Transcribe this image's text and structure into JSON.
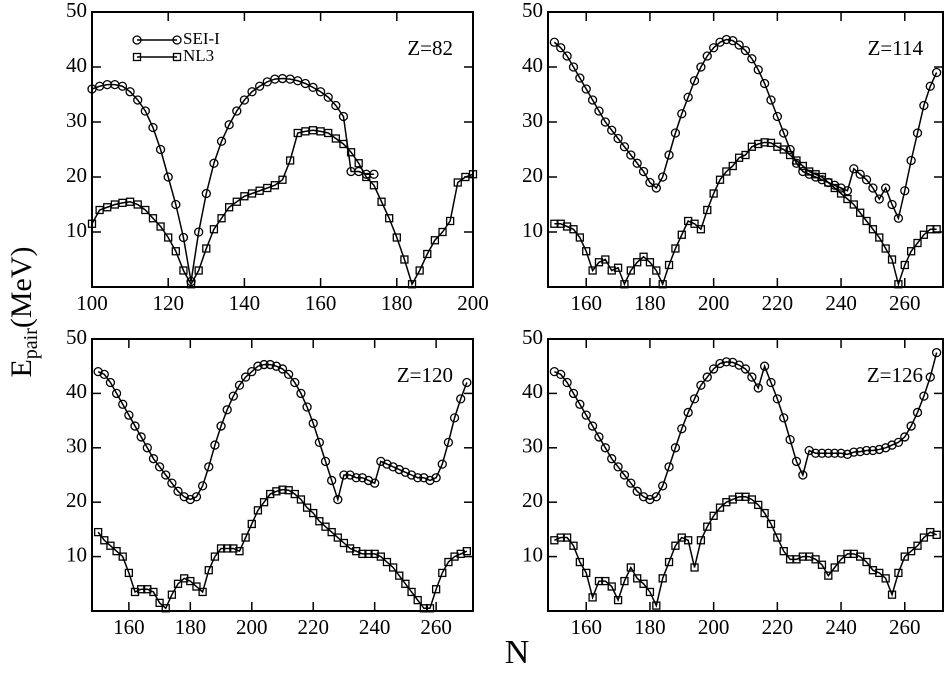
{
  "chart_data": [
    {
      "type": "line",
      "annotation": "Z=82",
      "xlabel": "N",
      "ylabel": "E",
      "ylabel_sub": "pair",
      "ylabel_unit": "(MeV)",
      "legend": "upper left",
      "grid": false,
      "xlim": [
        100,
        200
      ],
      "ylim": [
        0,
        50
      ],
      "xticks": [
        100,
        120,
        140,
        160,
        180,
        200
      ],
      "yticks": [
        10,
        20,
        30,
        40,
        50
      ],
      "x": [
        100,
        102,
        104,
        106,
        108,
        110,
        112,
        114,
        116,
        118,
        120,
        122,
        124,
        126,
        128,
        130,
        132,
        134,
        136,
        138,
        140,
        142,
        144,
        146,
        148,
        150,
        152,
        154,
        156,
        158,
        160,
        162,
        164,
        166,
        168,
        170,
        172,
        174,
        176,
        178,
        180,
        182,
        184,
        186,
        188,
        190,
        192,
        194,
        196,
        198,
        200
      ],
      "series": [
        {
          "name": "SEI-I",
          "color": "#000000",
          "marker": "circle",
          "values": [
            36,
            36.5,
            36.8,
            36.8,
            36.5,
            35.5,
            34,
            32,
            29,
            25,
            20,
            15,
            9,
            1,
            10,
            17,
            22.5,
            26.5,
            29.5,
            32,
            34,
            35.5,
            36.5,
            37.3,
            37.8,
            37.9,
            37.8,
            37.5,
            37,
            36.3,
            35.5,
            34.5,
            33,
            31,
            21,
            21,
            20.5,
            20.5,
            null,
            null,
            null,
            null,
            null,
            null,
            null,
            null,
            null,
            null,
            null,
            null,
            null
          ]
        },
        {
          "name": "NL3",
          "color": "#000000",
          "marker": "square",
          "values": [
            11.5,
            14,
            14.5,
            15,
            15.3,
            15.5,
            15,
            14,
            12.5,
            11,
            9,
            6.5,
            3,
            0.5,
            3,
            7,
            10.5,
            12.5,
            14.5,
            15.5,
            16.5,
            17,
            17.5,
            18,
            18.5,
            19.5,
            23,
            28,
            28.3,
            28.5,
            28.3,
            28,
            27,
            26,
            24.5,
            22.5,
            20,
            18.5,
            15.5,
            12.5,
            9,
            5,
            0.5,
            3,
            6,
            8.5,
            10,
            12,
            19,
            20,
            20.5
          ]
        }
      ]
    },
    {
      "type": "line",
      "annotation": "Z=114",
      "grid": false,
      "xlim": [
        148,
        272
      ],
      "ylim": [
        0,
        50
      ],
      "xticks": [
        160,
        180,
        200,
        220,
        240,
        260
      ],
      "yticks": [
        10,
        20,
        30,
        40,
        50
      ],
      "x": [
        150,
        152,
        154,
        156,
        158,
        160,
        162,
        164,
        166,
        168,
        170,
        172,
        174,
        176,
        178,
        180,
        182,
        184,
        186,
        188,
        190,
        192,
        194,
        196,
        198,
        200,
        202,
        204,
        206,
        208,
        210,
        212,
        214,
        216,
        218,
        220,
        222,
        224,
        226,
        228,
        230,
        232,
        234,
        236,
        238,
        240,
        242,
        244,
        246,
        248,
        250,
        252,
        254,
        256,
        258,
        260,
        262,
        264,
        266,
        268,
        270
      ],
      "series": [
        {
          "color": "#000000",
          "marker": "circle",
          "values": [
            44.5,
            43.5,
            42,
            40,
            38,
            36,
            34,
            32,
            30,
            28.5,
            27,
            25.5,
            24,
            22.5,
            21,
            19,
            18,
            20,
            24,
            28,
            31.5,
            34.5,
            37.5,
            40,
            42,
            43.5,
            44.5,
            45,
            44.8,
            44,
            43,
            41.5,
            39.5,
            37,
            34,
            31,
            28,
            25,
            22.5,
            21,
            20.5,
            20,
            19.5,
            19,
            18.5,
            18,
            17.5,
            21.5,
            20.5,
            19.5,
            18,
            16,
            18,
            15,
            12.5,
            17.5,
            23,
            28,
            33,
            36.5,
            39
          ]
        },
        {
          "color": "#000000",
          "marker": "square",
          "values": [
            11.5,
            11.5,
            11,
            10.5,
            9,
            6.5,
            3,
            4.5,
            5,
            3,
            3.5,
            0.5,
            3,
            4.5,
            5.5,
            4.5,
            3,
            0.5,
            4,
            7,
            9.5,
            12,
            11.5,
            10.5,
            14,
            17,
            19.5,
            21,
            22,
            23.5,
            24,
            25.5,
            26,
            26.3,
            26.2,
            25.5,
            25,
            24,
            23,
            22,
            21,
            20.5,
            20,
            19,
            18,
            17,
            16,
            15,
            13.5,
            12,
            10.5,
            9,
            7,
            5,
            0.5,
            4,
            6.5,
            8,
            9.5,
            10.5,
            10.5
          ]
        }
      ]
    },
    {
      "type": "line",
      "annotation": "Z=120",
      "grid": false,
      "xlim": [
        148,
        272
      ],
      "ylim": [
        0,
        50
      ],
      "xticks": [
        160,
        180,
        200,
        220,
        240,
        260
      ],
      "yticks": [
        10,
        20,
        30,
        40,
        50
      ],
      "x": [
        150,
        152,
        154,
        156,
        158,
        160,
        162,
        164,
        166,
        168,
        170,
        172,
        174,
        176,
        178,
        180,
        182,
        184,
        186,
        188,
        190,
        192,
        194,
        196,
        198,
        200,
        202,
        204,
        206,
        208,
        210,
        212,
        214,
        216,
        218,
        220,
        222,
        224,
        226,
        228,
        230,
        232,
        234,
        236,
        238,
        240,
        242,
        244,
        246,
        248,
        250,
        252,
        254,
        256,
        258,
        260,
        262,
        264,
        266,
        268,
        270
      ],
      "series": [
        {
          "color": "#000000",
          "marker": "circle",
          "values": [
            44,
            43.5,
            42,
            40,
            38,
            36,
            34,
            32,
            30,
            28,
            26.5,
            25,
            23.5,
            22,
            21,
            20.5,
            21,
            23,
            26.5,
            30.5,
            34,
            37,
            39.5,
            41.5,
            43,
            44,
            45,
            45.3,
            45.3,
            45,
            44.5,
            43.5,
            42,
            40,
            37.5,
            34.5,
            31,
            27.5,
            24,
            20.5,
            25,
            25,
            24.5,
            24.5,
            24,
            23.5,
            27.5,
            27,
            26.5,
            26,
            25.5,
            25,
            24.5,
            24.5,
            24,
            24.5,
            27,
            31,
            35.5,
            39,
            42
          ]
        },
        {
          "color": "#000000",
          "marker": "square",
          "values": [
            14.5,
            13,
            12,
            11,
            10,
            7,
            3.5,
            4,
            4,
            3.5,
            1.5,
            0.5,
            3,
            5,
            6,
            5.5,
            4.5,
            3.5,
            7.5,
            10,
            11.5,
            11.5,
            11.5,
            11,
            13.5,
            16,
            18.5,
            20,
            21.5,
            22,
            22.3,
            22.2,
            21.5,
            20.5,
            19,
            18,
            16.5,
            15.5,
            14.5,
            13.5,
            12.5,
            11.5,
            11,
            10.5,
            10.5,
            10.5,
            10,
            9,
            8,
            6.5,
            5,
            3.5,
            2,
            0.5,
            0.5,
            4,
            7,
            9,
            10,
            10.5,
            11
          ]
        }
      ]
    },
    {
      "type": "line",
      "annotation": "Z=126",
      "grid": false,
      "xlim": [
        148,
        272
      ],
      "ylim": [
        0,
        50
      ],
      "xticks": [
        160,
        180,
        200,
        220,
        240,
        260
      ],
      "yticks": [
        10,
        20,
        30,
        40,
        50
      ],
      "x": [
        150,
        152,
        154,
        156,
        158,
        160,
        162,
        164,
        166,
        168,
        170,
        172,
        174,
        176,
        178,
        180,
        182,
        184,
        186,
        188,
        190,
        192,
        194,
        196,
        198,
        200,
        202,
        204,
        206,
        208,
        210,
        212,
        214,
        216,
        218,
        220,
        222,
        224,
        226,
        228,
        230,
        232,
        234,
        236,
        238,
        240,
        242,
        244,
        246,
        248,
        250,
        252,
        254,
        256,
        258,
        260,
        262,
        264,
        266,
        268,
        270
      ],
      "series": [
        {
          "color": "#000000",
          "marker": "circle",
          "values": [
            44,
            43.5,
            42,
            40,
            38,
            36,
            34,
            32,
            30,
            28,
            26.5,
            25,
            23.5,
            22,
            21,
            20.5,
            21,
            23,
            26.5,
            30,
            33.5,
            36.5,
            39,
            41.5,
            43,
            44.5,
            45.5,
            45.8,
            45.7,
            45.2,
            44.5,
            43,
            41,
            45,
            42,
            39,
            35.5,
            31.5,
            27.5,
            25,
            29.5,
            29,
            29,
            29,
            29,
            29,
            28.8,
            29.2,
            29.3,
            29.5,
            29.5,
            29.7,
            30,
            30.5,
            31,
            32,
            34,
            36.5,
            39.5,
            43,
            47.5
          ]
        },
        {
          "color": "#000000",
          "marker": "square",
          "values": [
            13,
            13.5,
            13.5,
            12,
            9,
            7,
            2.5,
            5.5,
            5.5,
            4.5,
            2,
            5.5,
            8,
            6,
            5,
            3.5,
            1,
            6,
            9,
            12,
            13.5,
            13,
            8,
            13,
            15.5,
            17.5,
            19,
            20,
            20.5,
            21,
            21,
            20.5,
            19.5,
            18,
            16,
            13.5,
            11,
            9.5,
            9.5,
            10,
            10,
            9.5,
            8.5,
            6.5,
            8,
            9.5,
            10.5,
            10.5,
            10,
            9,
            7.5,
            7,
            6,
            3,
            7,
            10,
            11,
            12,
            13.5,
            14.5,
            14
          ]
        }
      ]
    }
  ]
}
